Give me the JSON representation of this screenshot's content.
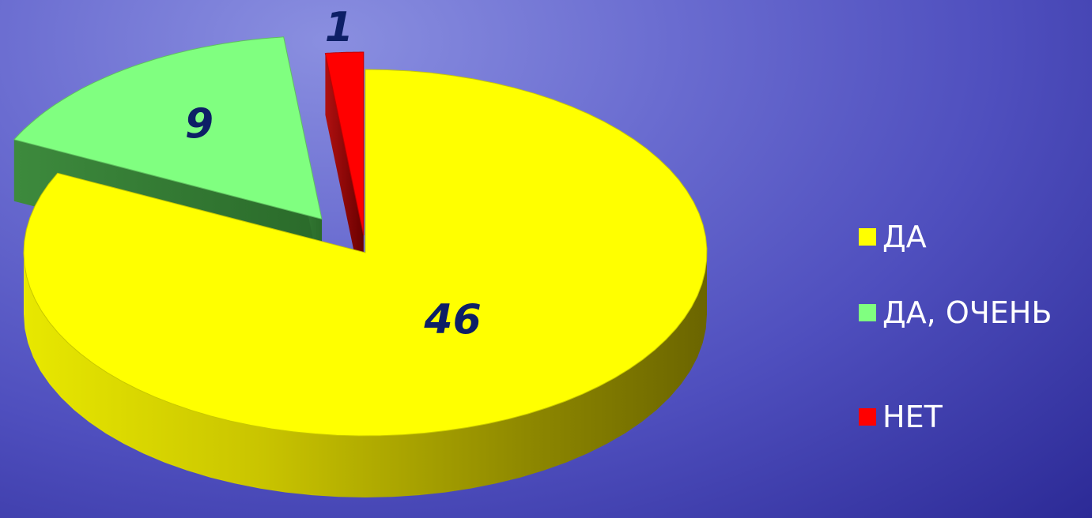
{
  "chart_data": {
    "type": "pie",
    "title": "",
    "categories": [
      "ДА",
      "ДА, ОЧЕНЬ",
      "НЕТ"
    ],
    "values": [
      46,
      9,
      1
    ],
    "data_labels": [
      "46",
      "9",
      "1"
    ],
    "colors": [
      "#ffff00",
      "#80ff80",
      "#ff0000"
    ],
    "style": "3d-exploded",
    "legend_position": "right"
  }
}
